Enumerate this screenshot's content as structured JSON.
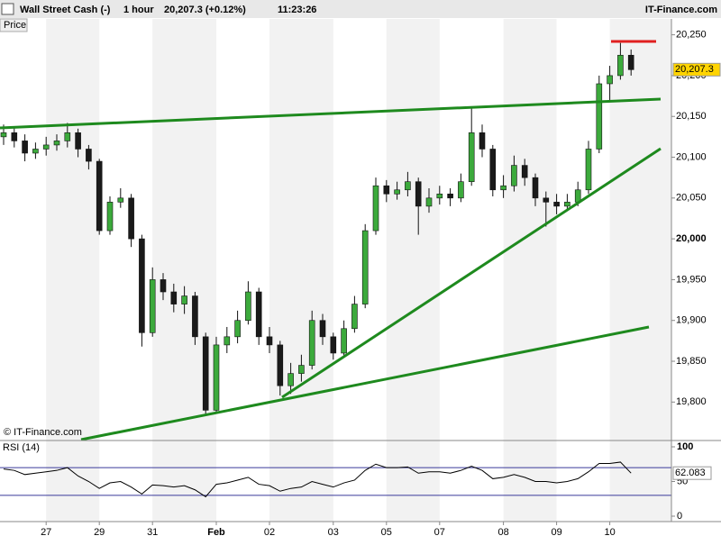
{
  "header": {
    "instrument": "Wall Street Cash (-)",
    "interval": "1 hour",
    "quote": "20,207.3 (+0.12%)",
    "time": "11:23:26",
    "site": "IT-Finance.com",
    "price_tab": "Price",
    "copyright": "© IT-Finance.com"
  },
  "chart_data": [
    {
      "type": "candlestick",
      "categories": [
        null,
        null,
        null,
        null,
        "27",
        null,
        null,
        null,
        null,
        "29",
        null,
        null,
        null,
        null,
        "31",
        null,
        null,
        null,
        null,
        null,
        "Feb",
        null,
        null,
        null,
        null,
        "02",
        null,
        null,
        null,
        null,
        null,
        "03",
        null,
        null,
        null,
        null,
        "05",
        null,
        null,
        null,
        null,
        "07",
        null,
        null,
        null,
        null,
        null,
        "08",
        null,
        null,
        null,
        null,
        "09",
        null,
        null,
        null,
        null,
        "10",
        null,
        null
      ],
      "open": [
        20125,
        20130,
        20120,
        20105,
        20110,
        20115,
        20120,
        20130,
        20110,
        20095,
        20010,
        20045,
        20050,
        20000,
        19885,
        19950,
        19935,
        19920,
        19930,
        19880,
        19790,
        19870,
        19880,
        19900,
        19935,
        19880,
        19870,
        19820,
        19835,
        19845,
        19900,
        19880,
        19860,
        19890,
        19920,
        20010,
        20065,
        20055,
        20060,
        20070,
        20040,
        20050,
        20055,
        20050,
        20070,
        20130,
        20110,
        20060,
        20065,
        20090,
        20075,
        20050,
        20045,
        20040,
        20045,
        20060,
        20110,
        20190,
        20200,
        20225
      ],
      "high": [
        20140,
        20138,
        20128,
        20118,
        20125,
        20128,
        20142,
        20135,
        20115,
        20098,
        20052,
        20062,
        20055,
        20005,
        19965,
        19958,
        19945,
        19942,
        19935,
        19885,
        19880,
        19892,
        19912,
        19948,
        19940,
        19892,
        19875,
        19848,
        19858,
        19912,
        19908,
        19885,
        19900,
        19930,
        20018,
        20075,
        20072,
        20070,
        20082,
        20075,
        20062,
        20065,
        20062,
        20080,
        20160,
        20140,
        20115,
        20078,
        20102,
        20098,
        20080,
        20058,
        20055,
        20055,
        20070,
        20120,
        20200,
        20212,
        20240,
        20232
      ],
      "low": [
        20115,
        20112,
        20095,
        20098,
        20102,
        20108,
        20112,
        20100,
        20085,
        20005,
        20005,
        20038,
        19990,
        19868,
        19880,
        19925,
        19910,
        19908,
        19870,
        19785,
        19788,
        19860,
        19872,
        19895,
        19870,
        19860,
        19808,
        19810,
        19825,
        19840,
        19870,
        19852,
        19855,
        19885,
        19915,
        20005,
        20045,
        20048,
        20052,
        20005,
        20032,
        20042,
        20040,
        20045,
        20065,
        20100,
        20052,
        20050,
        20058,
        20065,
        20040,
        20015,
        20030,
        20035,
        20040,
        20055,
        20105,
        20168,
        20195,
        20200
      ],
      "close": [
        20130,
        20120,
        20105,
        20110,
        20115,
        20120,
        20130,
        20110,
        20095,
        20010,
        20045,
        20050,
        20000,
        19885,
        19950,
        19935,
        19920,
        19930,
        19880,
        19790,
        19870,
        19880,
        19900,
        19935,
        19880,
        19870,
        19820,
        19835,
        19845,
        19900,
        19880,
        19860,
        19890,
        19920,
        20010,
        20065,
        20055,
        20060,
        20070,
        20040,
        20050,
        20055,
        20050,
        20070,
        20130,
        20110,
        20060,
        20065,
        20090,
        20075,
        20050,
        20045,
        20040,
        20045,
        20060,
        20110,
        20190,
        20200,
        20225,
        20207.3
      ],
      "last_label": "20,207.3",
      "up_color": "#3caa3c",
      "down_color": "#1a1a1a",
      "ylim": [
        19754,
        20254
      ],
      "yticks": [
        {
          "value": 19800,
          "label": "19,800"
        },
        {
          "value": 19850,
          "label": "19,850"
        },
        {
          "value": 19900,
          "label": "19,900"
        },
        {
          "value": 19950,
          "label": "19,950"
        },
        {
          "value": 20000,
          "label": "20,000"
        },
        {
          "value": 20050,
          "label": "20,050"
        },
        {
          "value": 20100,
          "label": "20,100"
        },
        {
          "value": 20150,
          "label": "20,150"
        },
        {
          "value": 20200,
          "label": "20,200"
        },
        {
          "value": 20250,
          "label": "20,250"
        }
      ]
    },
    {
      "type": "line",
      "title": "RSI (14)",
      "values": [
        68,
        66,
        60,
        62,
        64,
        66,
        70,
        58,
        50,
        40,
        48,
        50,
        42,
        32,
        45,
        44,
        42,
        44,
        38,
        28,
        46,
        48,
        52,
        56,
        46,
        44,
        36,
        40,
        42,
        50,
        46,
        42,
        48,
        52,
        66,
        75,
        70,
        70,
        71,
        62,
        64,
        64,
        62,
        66,
        72,
        66,
        54,
        56,
        60,
        56,
        50,
        50,
        48,
        50,
        54,
        64,
        76,
        76,
        78,
        62.083
      ],
      "color": "#000000",
      "levels": [
        30,
        70
      ],
      "level_color": "#3a3a9a",
      "ylim": [
        -6.5,
        107.8
      ],
      "yticks": [
        0,
        50,
        100
      ]
    }
  ]
}
